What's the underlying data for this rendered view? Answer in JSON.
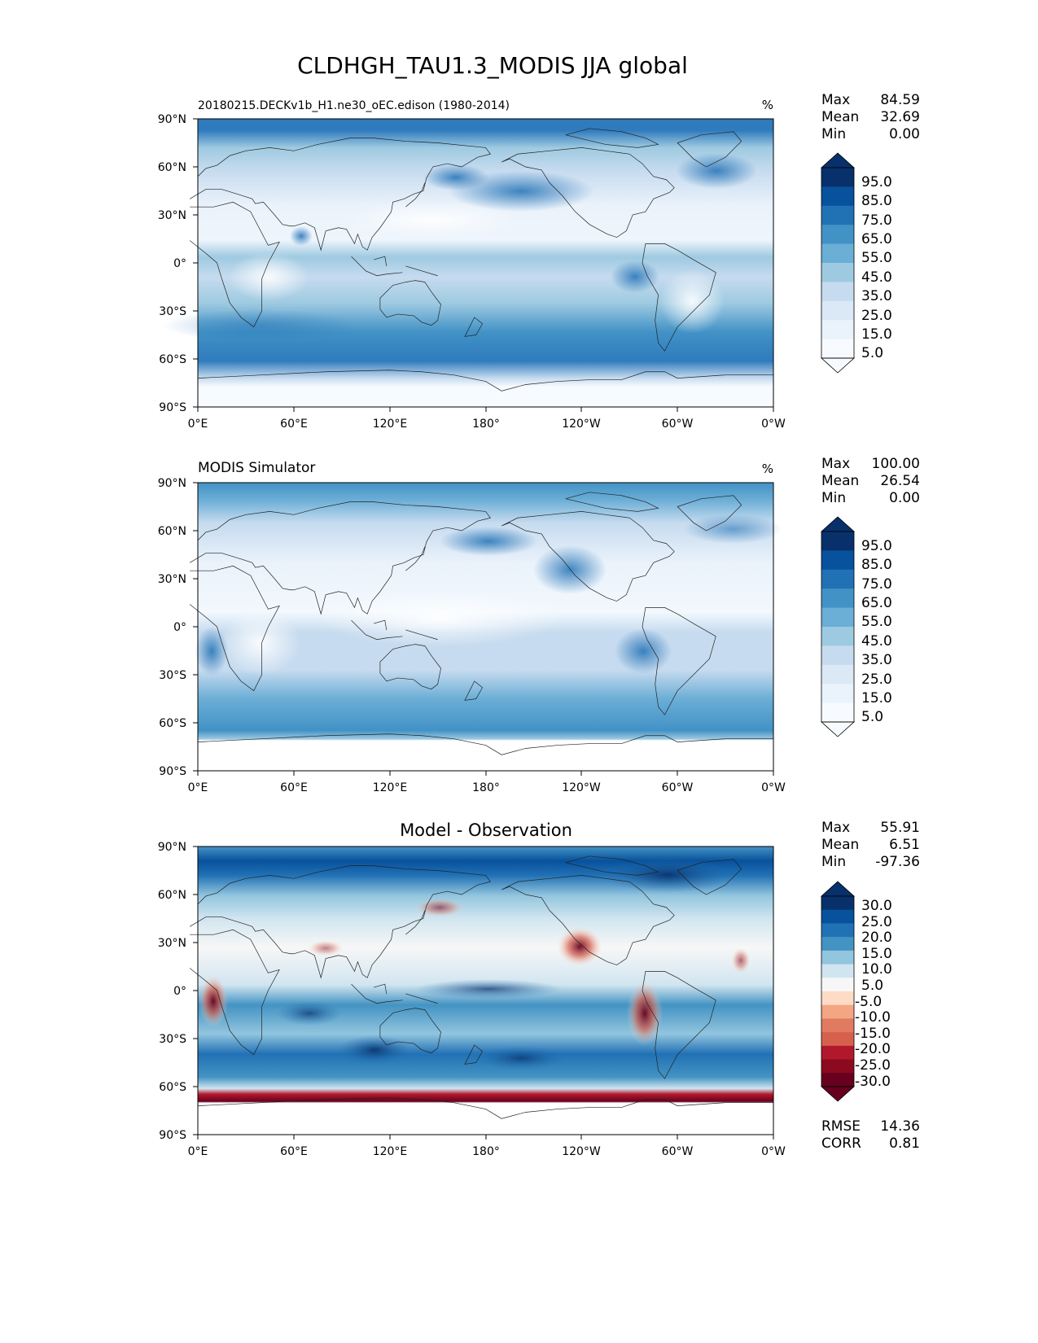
{
  "figure": {
    "title": "CLDHGH_TAU1.3_MODIS JJA global"
  },
  "chart_data": [
    {
      "type": "heatmap",
      "panel": "test",
      "left_title": "20180215.DECKv1b_H1.ne30_oEC.edison (1980-2014)",
      "center_title": "",
      "units": "%",
      "x_ticks": [
        "0°E",
        "60°E",
        "120°E",
        "180°",
        "120°W",
        "60°W",
        "0°W"
      ],
      "y_ticks": [
        "90°N",
        "60°N",
        "30°N",
        "0°",
        "30°S",
        "60°S",
        "90°S"
      ],
      "xlim": [
        0,
        360
      ],
      "ylim": [
        -90,
        90
      ],
      "stats": [
        {
          "label": "Max",
          "value": "84.59"
        },
        {
          "label": "Mean",
          "value": "32.69"
        },
        {
          "label": "Min",
          "value": "0.00"
        }
      ],
      "colorbar": {
        "type": "sequential",
        "ticks": [
          "95.0",
          "85.0",
          "75.0",
          "65.0",
          "55.0",
          "45.0",
          "35.0",
          "25.0",
          "15.0",
          "5.0"
        ],
        "colors": [
          "#08306b",
          "#08519c",
          "#2171b5",
          "#4292c6",
          "#6baed6",
          "#9ecae1",
          "#c6dbef",
          "#dbe9f6",
          "#eaf2fb",
          "#f7fbff"
        ]
      }
    },
    {
      "type": "heatmap",
      "panel": "reference",
      "left_title": "MODIS Simulator",
      "center_title": "",
      "units": "%",
      "x_ticks": [
        "0°E",
        "60°E",
        "120°E",
        "180°",
        "120°W",
        "60°W",
        "0°W"
      ],
      "y_ticks": [
        "90°N",
        "60°N",
        "30°N",
        "0°",
        "30°S",
        "60°S",
        "90°S"
      ],
      "xlim": [
        0,
        360
      ],
      "ylim": [
        -90,
        90
      ],
      "stats": [
        {
          "label": "Max",
          "value": "100.00"
        },
        {
          "label": "Mean",
          "value": "26.54"
        },
        {
          "label": "Min",
          "value": "0.00"
        }
      ],
      "colorbar": {
        "type": "sequential",
        "ticks": [
          "95.0",
          "85.0",
          "75.0",
          "65.0",
          "55.0",
          "45.0",
          "35.0",
          "25.0",
          "15.0",
          "5.0"
        ],
        "colors": [
          "#08306b",
          "#08519c",
          "#2171b5",
          "#4292c6",
          "#6baed6",
          "#9ecae1",
          "#c6dbef",
          "#dbe9f6",
          "#eaf2fb",
          "#f7fbff"
        ]
      }
    },
    {
      "type": "heatmap",
      "panel": "difference",
      "left_title": "",
      "center_title": "Model - Observation",
      "units": "",
      "x_ticks": [
        "0°E",
        "60°E",
        "120°E",
        "180°",
        "120°W",
        "60°W",
        "0°W"
      ],
      "y_ticks": [
        "90°N",
        "60°N",
        "30°N",
        "0°",
        "30°S",
        "60°S",
        "90°S"
      ],
      "xlim": [
        0,
        360
      ],
      "ylim": [
        -90,
        90
      ],
      "stats": [
        {
          "label": "Max",
          "value": "55.91"
        },
        {
          "label": "Mean",
          "value": "6.51"
        },
        {
          "label": "Min",
          "value": "-97.36"
        }
      ],
      "metrics": [
        {
          "label": "RMSE",
          "value": "14.36"
        },
        {
          "label": "CORR",
          "value": "0.81"
        }
      ],
      "colorbar": {
        "type": "diverging",
        "ticks": [
          "30.0",
          "25.0",
          "20.0",
          "15.0",
          "10.0",
          "5.0",
          "-5.0",
          "-10.0",
          "-15.0",
          "-20.0",
          "-25.0",
          "-30.0"
        ],
        "colors": [
          "#08306b",
          "#08519c",
          "#2171b5",
          "#4393c3",
          "#92c5de",
          "#d1e5f0",
          "#f7f7f7",
          "#fddbc7",
          "#f4a582",
          "#e07b62",
          "#d6604d",
          "#b2182b",
          "#8b0a1f",
          "#67001f"
        ]
      }
    }
  ]
}
